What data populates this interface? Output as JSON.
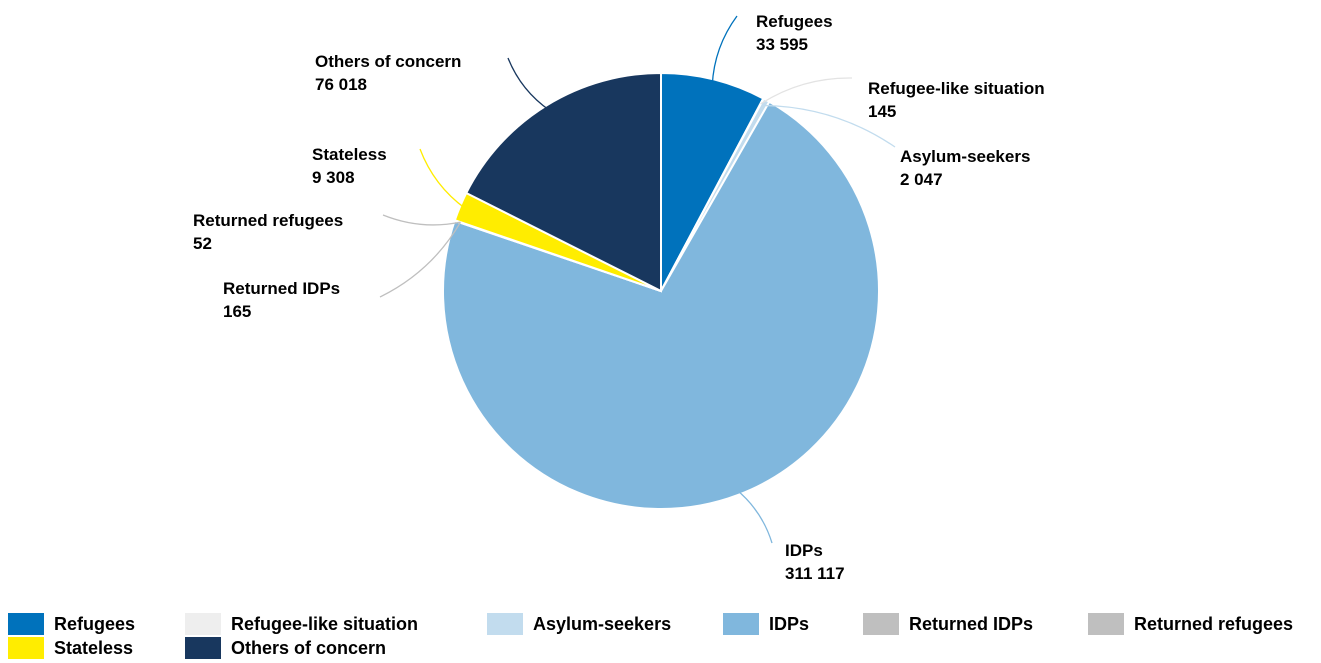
{
  "chart_data": {
    "type": "pie",
    "slices": [
      {
        "label": "Refugees",
        "value": 33595,
        "value_text": "33 595",
        "color": "#0072bc"
      },
      {
        "label": "Refugee-like situation",
        "value": 145,
        "value_text": "145",
        "color": "#eeeeee"
      },
      {
        "label": "Asylum-seekers",
        "value": 2047,
        "value_text": "2 047",
        "color": "#c2dcee"
      },
      {
        "label": "IDPs",
        "value": 311117,
        "value_text": "311 117",
        "color": "#80b7dd"
      },
      {
        "label": "Returned IDPs",
        "value": 165,
        "value_text": "165",
        "color": "#bfbfbf"
      },
      {
        "label": "Returned refugees",
        "value": 52,
        "value_text": "52",
        "color": "#bfbfbf"
      },
      {
        "label": "Stateless",
        "value": 9308,
        "value_text": "9 308",
        "color": "#ffed00"
      },
      {
        "label": "Others of concern",
        "value": 76018,
        "value_text": "76 018",
        "color": "#18375e"
      }
    ],
    "legend_position": "bottom"
  }
}
